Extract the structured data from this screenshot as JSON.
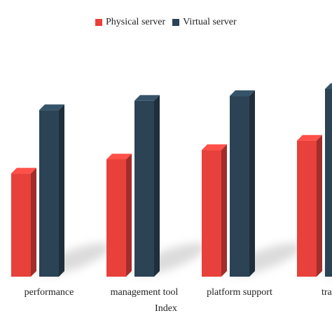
{
  "chart_data": {
    "type": "bar",
    "title": "",
    "xlabel": "Index",
    "ylabel": "",
    "categories": [
      "performance",
      "management tool",
      "platform support",
      "transfe"
    ],
    "series": [
      {
        "name": "Physical server",
        "color": "#e8403a",
        "values": [
          44,
          50,
          54,
          58
        ]
      },
      {
        "name": "Virtual server",
        "color": "#2b4354",
        "values": [
          71,
          75,
          77,
          80
        ]
      }
    ],
    "ylim": [
      0,
      100
    ],
    "grid": false,
    "legend": "top-center",
    "style": "3d-bars-with-shadow"
  }
}
